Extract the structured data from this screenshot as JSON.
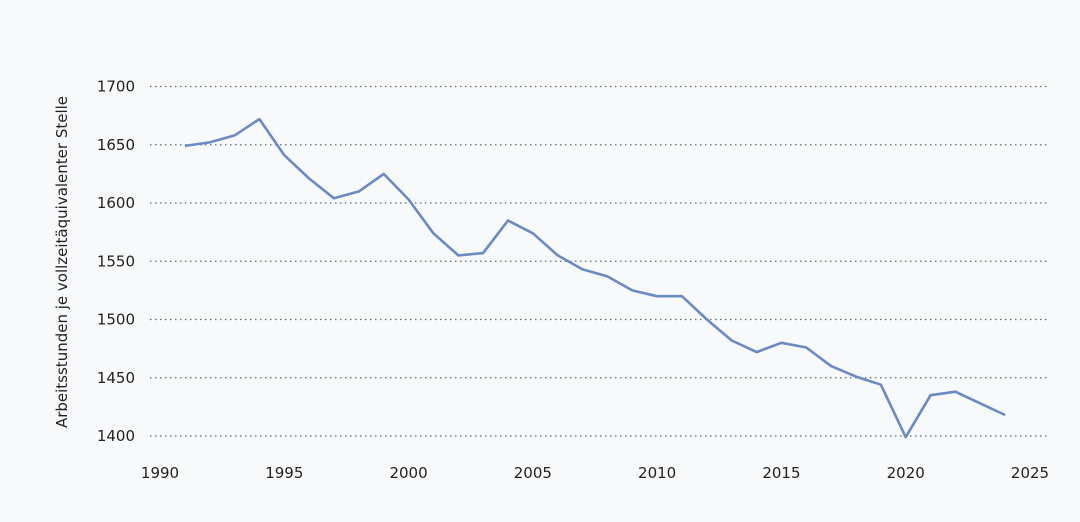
{
  "chart_data": {
    "type": "line",
    "title": "",
    "xlabel": "",
    "ylabel": "Arbeitsstunden je vollzeitäquivalenter Stelle",
    "xlim": [
      1990,
      2025
    ],
    "ylim": [
      1400,
      1700
    ],
    "xticks": [
      1990,
      1995,
      2000,
      2005,
      2010,
      2015,
      2020,
      2025
    ],
    "yticks": [
      1400,
      1450,
      1500,
      1550,
      1600,
      1650,
      1700
    ],
    "grid": "horizontal dotted",
    "legend": "none",
    "color": "#6a8ac4",
    "series": [
      {
        "x": [
          1991,
          1992,
          1993,
          1994,
          1995,
          1996,
          1997,
          1998,
          1999,
          2000,
          2001,
          2002,
          2003,
          2004,
          2005,
          2006,
          2007,
          2008,
          2009,
          2010,
          2011,
          2012,
          2013,
          2014,
          2015,
          2016,
          2017,
          2018,
          2019,
          2020,
          2021,
          2022,
          2023,
          2024
        ],
        "values": [
          1649,
          1652,
          1658,
          1672,
          1641,
          1621,
          1604,
          1610,
          1625,
          1603,
          1574,
          1555,
          1557,
          1585,
          1574,
          1555,
          1543,
          1537,
          1525,
          1520,
          1520,
          1500,
          1482,
          1472,
          1480,
          1476,
          1460,
          1451,
          1444,
          1399,
          1435,
          1438,
          1428,
          1418
        ]
      }
    ]
  }
}
